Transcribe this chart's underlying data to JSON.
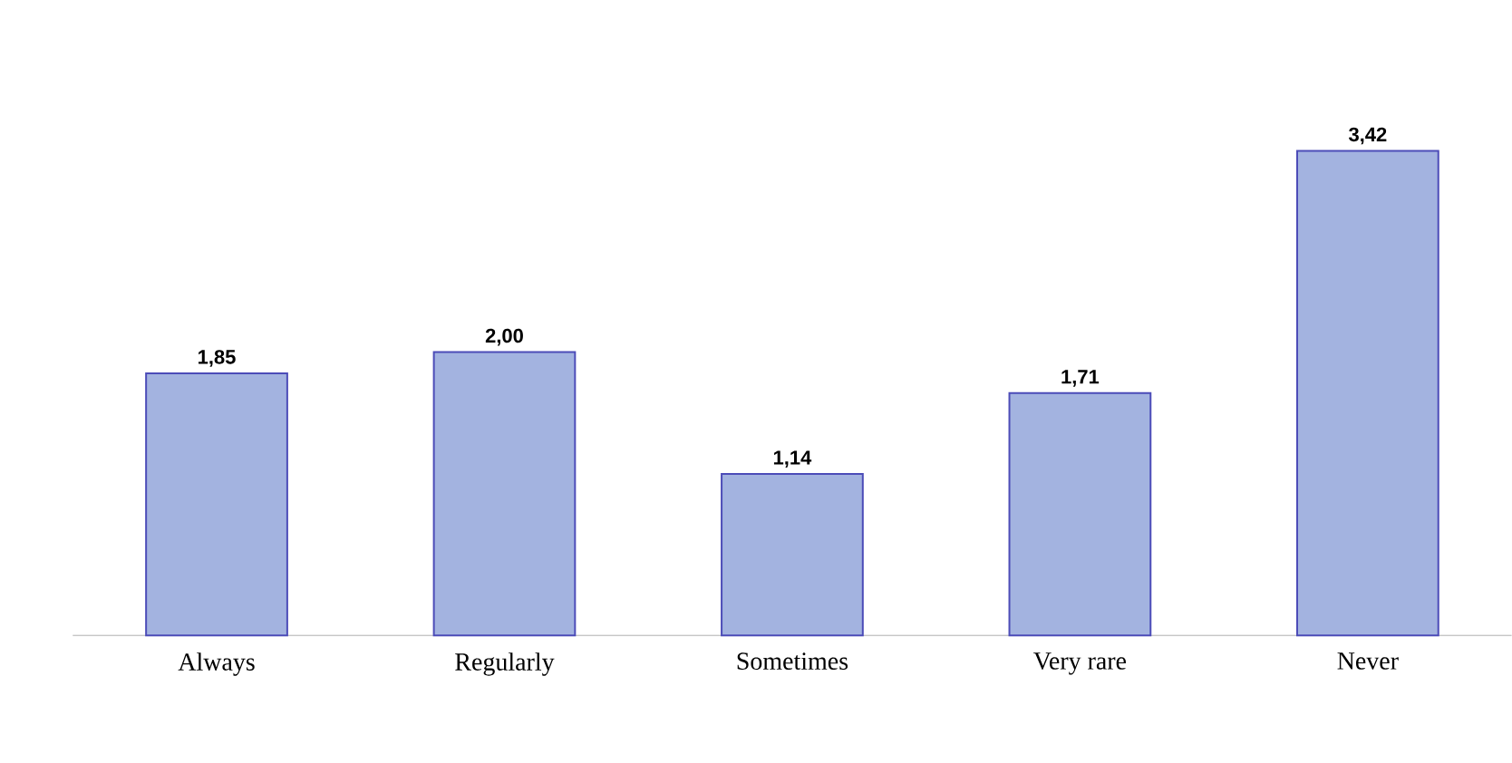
{
  "chart_data": {
    "type": "bar",
    "categories": [
      "Always",
      "Regularly",
      "Sometimes",
      "Very rare",
      "Never"
    ],
    "values": [
      1.85,
      2.0,
      1.14,
      1.71,
      3.42
    ],
    "value_labels": [
      "1,85",
      "2,00",
      "1,14",
      "1,71",
      "3,42"
    ],
    "color": "#a3b3e0"
  }
}
